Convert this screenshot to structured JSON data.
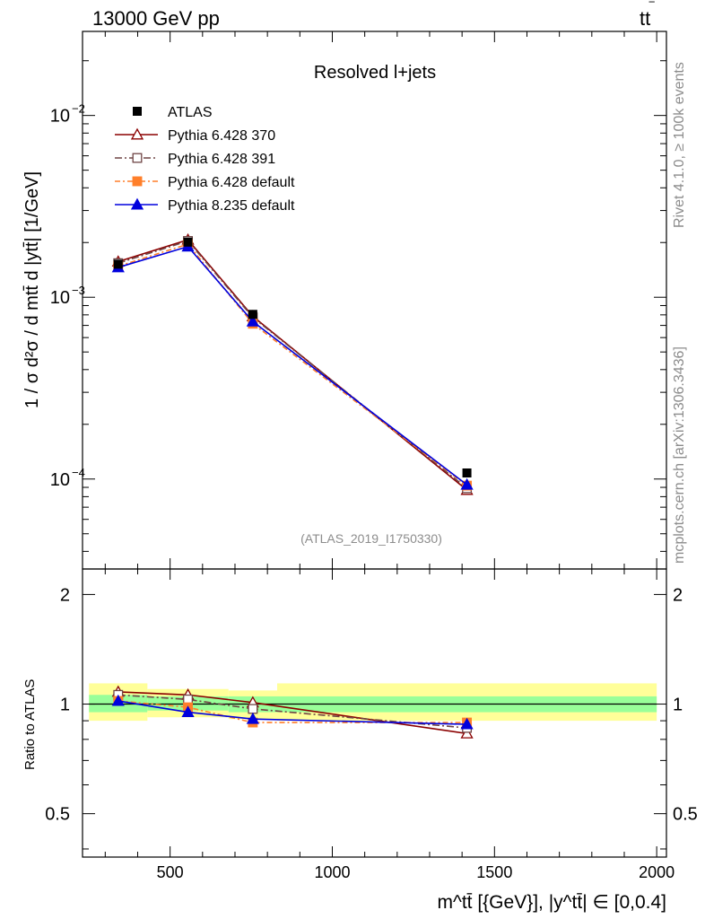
{
  "header": {
    "left": "13000 GeV pp",
    "right_main": "tt",
    "right_bar": "‾"
  },
  "side_labels": {
    "rivet": "Rivet 4.1.0, ≥ 100k events",
    "mcplots": "mcplots.cern.ch [arXiv:1306.3436]"
  },
  "chart_data": {
    "type": "line",
    "title": "Resolved l+jets",
    "analysis_id": "(ATLAS_2019_I1750330)",
    "ylabel": "1 / σ d²σ / d mtt̄ d |ytt̄| [1/GeV]",
    "xlabel": "m^tt̄ [{GeV}], |y^tt̄| ∈ [0,0.4]",
    "ratio_ylabel": "Ratio to ATLAS",
    "xlim": [
      230,
      2030
    ],
    "ylim": [
      3.2e-05,
      0.029
    ],
    "yscale": "log",
    "ratio_ylim": [
      0.38,
      2.35
    ],
    "ratio_yscale": "log",
    "xticks": [
      500,
      1000,
      1500,
      2000
    ],
    "xtick_labels": [
      "500",
      "1000",
      "1500",
      "2000"
    ],
    "yticks": [
      0.0001,
      0.001,
      0.01
    ],
    "ytick_labels": [
      {
        "base": "10",
        "exp": "−4"
      },
      {
        "base": "10",
        "exp": "−3"
      },
      {
        "base": "10",
        "exp": "−2"
      }
    ],
    "ratio_yticks": [
      0.5,
      1,
      2
    ],
    "ratio_ytick_labels": [
      "0.5",
      "1",
      "2"
    ],
    "bins": [
      [
        250,
        430
      ],
      [
        430,
        680
      ],
      [
        680,
        830
      ],
      [
        830,
        2000
      ]
    ],
    "x": [
      340,
      555,
      755,
      1415
    ],
    "data": {
      "name": "ATLAS",
      "values": [
        0.00152,
        0.00201,
        0.000805,
        0.000108
      ]
    },
    "band_inner": [
      [
        0.95,
        1.06
      ],
      [
        0.96,
        1.05
      ],
      [
        0.95,
        1.05
      ],
      [
        0.95,
        1.05
      ]
    ],
    "band_outer": [
      [
        0.9,
        1.14
      ],
      [
        0.92,
        1.1
      ],
      [
        0.91,
        1.09
      ],
      [
        0.9,
        1.14
      ]
    ],
    "series": [
      {
        "name": "Pythia 6.428 370",
        "color": "#8b0000",
        "marker": "open-triangle",
        "dash": "",
        "values": [
          0.00157,
          0.00207,
          0.000785,
          8.7e-05
        ],
        "ratio": [
          1.08,
          1.06,
          1.01,
          0.83
        ]
      },
      {
        "name": "Pythia 6.428 391",
        "color": "#6f4545",
        "marker": "open-square",
        "dash": "8,3,2,3",
        "values": [
          0.00154,
          0.00204,
          0.000775,
          8.9e-05
        ],
        "ratio": [
          1.06,
          1.03,
          0.97,
          0.86
        ]
      },
      {
        "name": "Pythia 6.428 default",
        "color": "#ff7f2a",
        "marker": "filled-square",
        "dash": "6,3,2,3",
        "values": [
          0.00148,
          0.00196,
          0.000715,
          9.2e-05
        ],
        "ratio": [
          1.02,
          0.98,
          0.89,
          0.89
        ]
      },
      {
        "name": "Pythia 8.235 default",
        "color": "#0000dd",
        "marker": "filled-triangle",
        "dash": "",
        "values": [
          0.00146,
          0.0019,
          0.000735,
          9.3e-05
        ],
        "ratio": [
          1.02,
          0.95,
          0.91,
          0.88
        ]
      }
    ]
  }
}
